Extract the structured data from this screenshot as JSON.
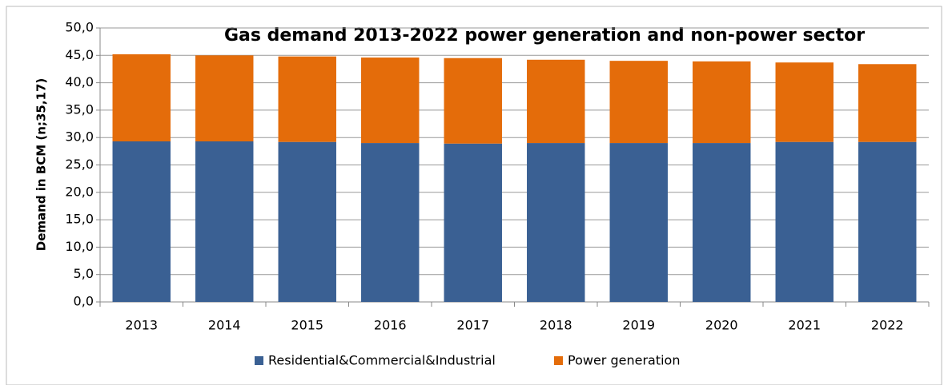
{
  "chart_data": {
    "type": "stacked_bar",
    "title": "Gas demand 2013-2022 power generation and non-power sector",
    "y_label": "Demand in BCM (n;35,17)",
    "categories": [
      "2013",
      "2014",
      "2015",
      "2016",
      "2017",
      "2018",
      "2019",
      "2020",
      "2021",
      "2022"
    ],
    "series": [
      {
        "name": "Residential&Commercial&Industrial",
        "color": "#3a6093",
        "values": [
          29.3,
          29.3,
          29.2,
          29.0,
          28.9,
          29.0,
          29.0,
          29.0,
          29.2,
          29.2
        ]
      },
      {
        "name": "Power generation",
        "color": "#e46c0a",
        "values": [
          15.9,
          15.7,
          15.6,
          15.6,
          15.6,
          15.2,
          15.0,
          14.9,
          14.5,
          14.2
        ]
      }
    ],
    "ylim": [
      0,
      50
    ],
    "yticks": [
      {
        "value": 0,
        "label": "0,0"
      },
      {
        "value": 5,
        "label": "5,0"
      },
      {
        "value": 10,
        "label": "10,0"
      },
      {
        "value": 15,
        "label": "15,0"
      },
      {
        "value": 20,
        "label": "20,0"
      },
      {
        "value": 25,
        "label": "25,0"
      },
      {
        "value": 30,
        "label": "30,0"
      },
      {
        "value": 35,
        "label": "35,0"
      },
      {
        "value": 40,
        "label": "40,0"
      },
      {
        "value": 45,
        "label": "45,0"
      },
      {
        "value": 50,
        "label": "50,0"
      }
    ],
    "grid": true,
    "legend": "bottom"
  }
}
